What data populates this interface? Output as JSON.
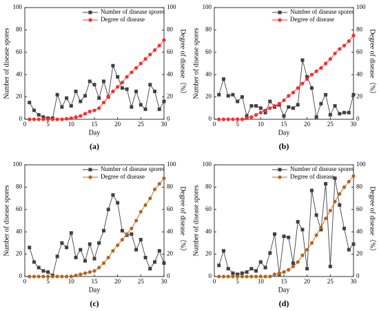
{
  "chart_data": [
    {
      "type": "line",
      "label": "(a)",
      "x_label": "Day",
      "y_label": "Number of disease spores",
      "y2_label": "Degree of disease（%）",
      "x": [
        1,
        2,
        3,
        4,
        5,
        6,
        7,
        8,
        9,
        10,
        11,
        12,
        13,
        14,
        15,
        16,
        17,
        18,
        19,
        20,
        21,
        22,
        23,
        24,
        25,
        26,
        27,
        28,
        29,
        30
      ],
      "xlim": [
        0,
        30
      ],
      "xticks": [
        0,
        5,
        10,
        15,
        20,
        25,
        30
      ],
      "ylim": [
        0,
        100
      ],
      "yticks": [
        0,
        20,
        40,
        60,
        80,
        100
      ],
      "y2lim": [
        0,
        100
      ],
      "y2ticks": [
        0,
        20,
        40,
        60,
        80,
        100
      ],
      "legend": "upper center",
      "series": [
        {
          "name": "Number of disease spores",
          "color": "#404040",
          "marker": "square",
          "values": [
            15,
            8,
            4,
            2,
            1,
            1,
            22,
            11,
            19,
            12,
            25,
            16,
            21,
            34,
            31,
            19,
            34,
            20,
            48,
            38,
            28,
            27,
            11,
            25,
            13,
            9,
            31,
            25,
            9,
            16
          ]
        },
        {
          "name": "Degree of disease",
          "color": "#ff2a2a",
          "marker": "circle",
          "axis": "y2",
          "values": [
            0,
            0,
            0,
            0,
            0,
            0,
            0,
            0,
            0.5,
            1,
            2,
            3,
            5,
            7,
            8,
            10,
            15,
            20,
            25,
            29,
            33,
            38,
            42,
            46,
            50,
            54,
            58,
            62,
            66,
            71
          ]
        }
      ]
    },
    {
      "type": "line",
      "label": "(b)",
      "x_label": "Day",
      "y_label": "Number of disease spores",
      "y2_label": "Degree of disease（%）",
      "x": [
        1,
        2,
        3,
        4,
        5,
        6,
        7,
        8,
        9,
        10,
        11,
        12,
        13,
        14,
        15,
        16,
        17,
        18,
        19,
        20,
        21,
        22,
        23,
        24,
        25,
        26,
        27,
        28,
        29,
        30
      ],
      "xlim": [
        0,
        30
      ],
      "xticks": [
        0,
        5,
        10,
        15,
        20,
        25,
        30
      ],
      "ylim": [
        0,
        100
      ],
      "yticks": [
        0,
        20,
        40,
        60,
        80,
        100
      ],
      "y2lim": [
        0,
        100
      ],
      "y2ticks": [
        0,
        20,
        40,
        60,
        80,
        100
      ],
      "legend": "upper center",
      "series": [
        {
          "name": "Number of disease spores",
          "color": "#404040",
          "marker": "square",
          "values": [
            22,
            36,
            21,
            22,
            16,
            20,
            3,
            12,
            12,
            10,
            6,
            16,
            11,
            13,
            3,
            11,
            10,
            13,
            53,
            38,
            28,
            2,
            14,
            22,
            4,
            12,
            5,
            6,
            6,
            22
          ]
        },
        {
          "name": "Degree of disease",
          "color": "#ff2a2a",
          "marker": "circle",
          "axis": "y2",
          "values": [
            0,
            0,
            0,
            0,
            0,
            0,
            1,
            2,
            4,
            6,
            8,
            10,
            12,
            14,
            17,
            21,
            24,
            28,
            32,
            36,
            40,
            43,
            46,
            50,
            54,
            59,
            63,
            66,
            70,
            75
          ]
        }
      ]
    },
    {
      "type": "line",
      "label": "(c)",
      "x_label": "Day",
      "y_label": "Number of disease spores",
      "y2_label": "Degree of disease（%）",
      "x": [
        1,
        2,
        3,
        4,
        5,
        6,
        7,
        8,
        9,
        10,
        11,
        12,
        13,
        14,
        15,
        16,
        17,
        18,
        19,
        20,
        21,
        22,
        23,
        24,
        25,
        26,
        27,
        28,
        29,
        30
      ],
      "xlim": [
        0,
        30
      ],
      "xticks": [
        0,
        5,
        10,
        15,
        20,
        25,
        30
      ],
      "ylim": [
        0,
        100
      ],
      "yticks": [
        0,
        20,
        40,
        60,
        80,
        100
      ],
      "y2lim": [
        0,
        100
      ],
      "y2ticks": [
        0,
        20,
        40,
        60,
        80,
        100
      ],
      "legend": "upper center",
      "series": [
        {
          "name": "Number of disease spores",
          "color": "#404040",
          "marker": "square",
          "values": [
            26,
            13,
            8,
            5,
            4,
            1,
            18,
            30,
            26,
            39,
            17,
            24,
            14,
            29,
            16,
            30,
            41,
            60,
            73,
            66,
            41,
            37,
            38,
            24,
            33,
            17,
            7,
            13,
            23,
            12
          ]
        },
        {
          "name": "Degree of disease",
          "color": "#b5651d",
          "marker": "circle",
          "axis": "y2",
          "values": [
            0,
            0,
            0,
            0,
            0,
            0,
            0,
            0,
            0,
            0,
            1,
            2,
            3,
            4,
            5,
            8,
            12,
            17,
            23,
            28,
            33,
            38,
            43,
            50,
            58,
            64,
            70,
            78,
            83,
            88
          ]
        }
      ]
    },
    {
      "type": "line",
      "label": "(d)",
      "x_label": "Day",
      "y_label": "Number of disease spores",
      "y2_label": "Degree of disease（%）",
      "x": [
        1,
        2,
        3,
        4,
        5,
        6,
        7,
        8,
        9,
        10,
        11,
        12,
        13,
        14,
        15,
        16,
        17,
        18,
        19,
        20,
        21,
        22,
        23,
        24,
        25,
        26,
        27,
        28,
        29,
        30
      ],
      "xlim": [
        0,
        30
      ],
      "xticks": [
        0,
        5,
        10,
        15,
        20,
        25,
        30
      ],
      "ylim": [
        0,
        100
      ],
      "yticks": [
        0,
        20,
        40,
        60,
        80,
        100
      ],
      "y2lim": [
        0,
        100
      ],
      "y2ticks": [
        0,
        20,
        40,
        60,
        80,
        100
      ],
      "legend": "upper center",
      "series": [
        {
          "name": "Number of disease spores",
          "color": "#404040",
          "marker": "square",
          "values": [
            10,
            23,
            7,
            3,
            2,
            3,
            4,
            7,
            5,
            13,
            8,
            21,
            38,
            2,
            36,
            35,
            12,
            49,
            42,
            7,
            77,
            55,
            42,
            83,
            9,
            88,
            64,
            43,
            24,
            29
          ]
        },
        {
          "name": "Degree of disease",
          "color": "#b5651d",
          "marker": "circle",
          "axis": "y2",
          "values": [
            0,
            0,
            0,
            0,
            0,
            0,
            0,
            0,
            0,
            0,
            0,
            0,
            2,
            3,
            4,
            6,
            9,
            13,
            19,
            24,
            30,
            37,
            44,
            52,
            59,
            67,
            74,
            80,
            85,
            90
          ]
        }
      ]
    }
  ]
}
